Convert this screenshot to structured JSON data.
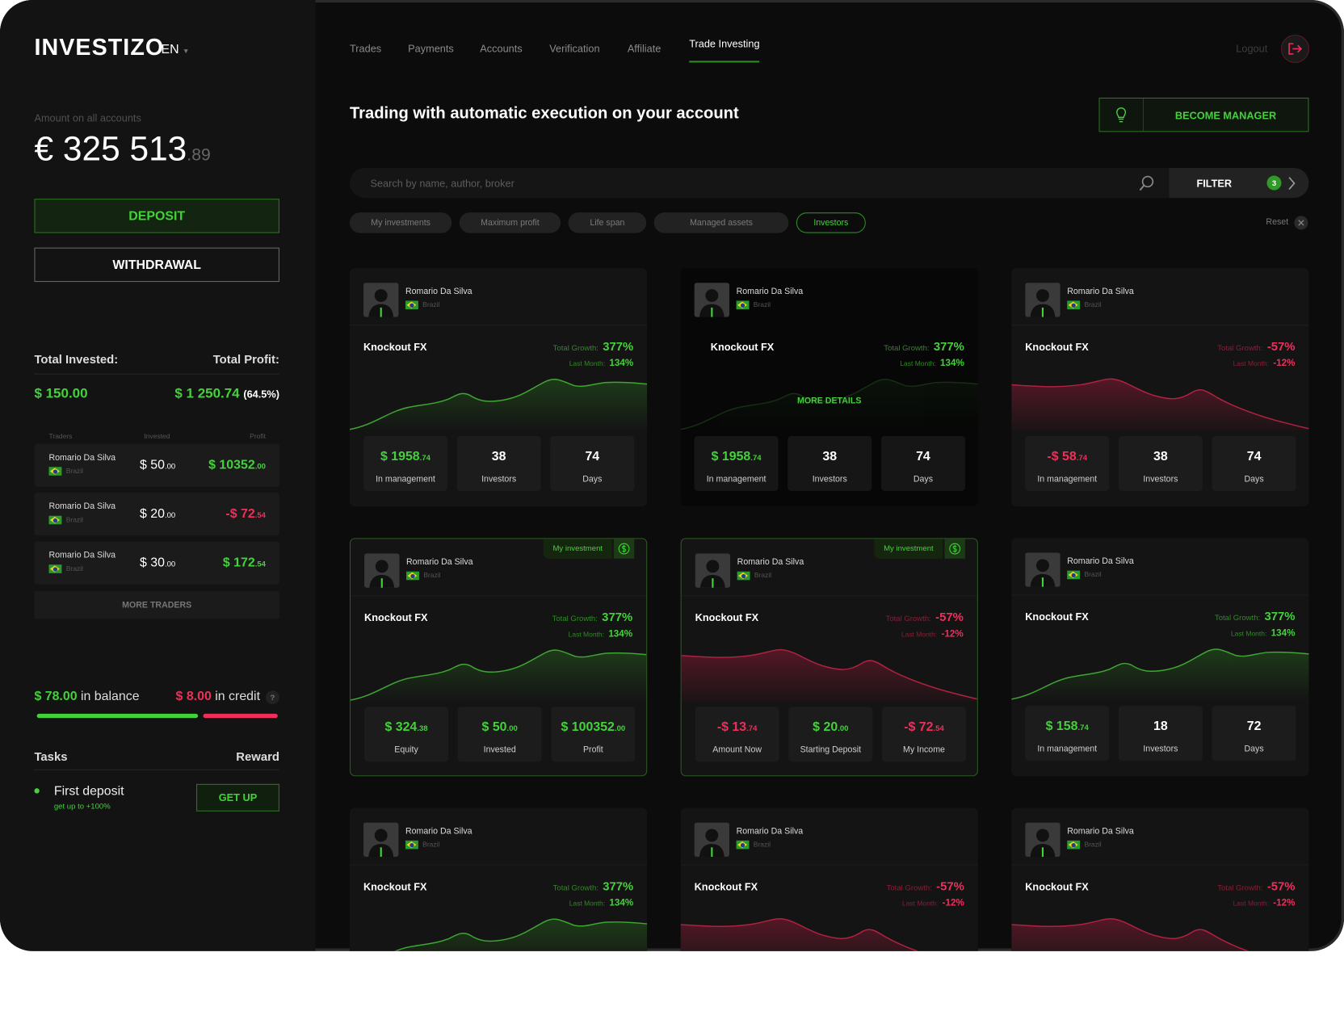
{
  "header": {
    "logo": "INVESTIZO",
    "language": "EN",
    "nav": [
      "Trades",
      "Payments",
      "Accounts",
      "Verification",
      "Affiliate",
      "Trade Investing"
    ],
    "active_nav": 5,
    "logout": "Logout"
  },
  "sidebar": {
    "amount_label": "Amount on all accounts",
    "amount": "€ 325 513",
    "amount_cents": ".89",
    "deposit": "DEPOSIT",
    "withdrawal": "WITHDRAWAL",
    "total_invested_label": "Total Invested:",
    "total_profit_label": "Total Profit:",
    "total_invested": "$ 150.00",
    "total_profit": "$ 1 250.74",
    "profit_pct": "(64.5%)",
    "traders_headers": [
      "Traders",
      "Invested",
      "Profit"
    ],
    "traders": [
      {
        "name": "Romario Da Silva",
        "country": "Brazil",
        "invested": "$ 50",
        "invested_cents": ".00",
        "profit": "$ 10352",
        "profit_cents": ".00",
        "tone": "up"
      },
      {
        "name": "Romario Da Silva",
        "country": "Brazil",
        "invested": "$ 20",
        "invested_cents": ".00",
        "profit": "-$ 72",
        "profit_cents": ".54",
        "tone": "down"
      },
      {
        "name": "Romario Da Silva",
        "country": "Brazil",
        "invested": "$ 30",
        "invested_cents": ".00",
        "profit": "$ 172",
        "profit_cents": ".54",
        "tone": "up"
      }
    ],
    "more_traders": "MORE TRADERS",
    "balance": "$ 78.00",
    "balance_label": "in balance",
    "credit": "$ 8.00",
    "credit_label": "in credit",
    "help": "?",
    "tasks_label": "Tasks",
    "reward_label": "Reward",
    "task": {
      "title": "First deposit",
      "subtitle": "get up to +100%",
      "button": "GET UP"
    }
  },
  "main": {
    "title": "Trading with automatic execution on your account",
    "become_manager": "BECOME MANAGER",
    "search_placeholder": "Search by name, author, broker",
    "filter": "FILTER",
    "filter_count": "3",
    "chips": [
      "My investments",
      "Maximum profit",
      "Life span",
      "Managed assets",
      "Investors"
    ],
    "active_chip": 4,
    "reset": "Reset",
    "growth_label": "Total Growth:",
    "month_label": "Last Month:",
    "more_details": "MORE DETAILS",
    "cards": [
      {
        "name": "Romario Da Silva",
        "country": "Brazil",
        "fund": "Knockout FX",
        "growth": "377%",
        "month": "134%",
        "tone": "up",
        "stats": [
          {
            "value": "$ 1958",
            "cents": ".74",
            "label": "In management",
            "tone": "up"
          },
          {
            "value": "38",
            "label": "Investors"
          },
          {
            "value": "74",
            "label": "Days"
          }
        ]
      },
      {
        "name": "Romario Da Silva",
        "country": "Brazil",
        "fund": "Knockout FX",
        "growth": "377%",
        "month": "134%",
        "tone": "up",
        "highlight": true,
        "stats": [
          {
            "value": "$ 1958",
            "cents": ".74",
            "label": "In management",
            "tone": "up"
          },
          {
            "value": "38",
            "label": "Investors"
          },
          {
            "value": "74",
            "label": "Days"
          }
        ]
      },
      {
        "name": "Romario Da Silva",
        "country": "Brazil",
        "fund": "Knockout FX",
        "growth": "-57%",
        "month": "-12%",
        "tone": "down",
        "stats": [
          {
            "value": "-$ 58",
            "cents": ".74",
            "label": "In management",
            "tone": "down"
          },
          {
            "value": "38",
            "label": "Investors"
          },
          {
            "value": "74",
            "label": "Days"
          }
        ]
      },
      {
        "name": "Romario Da Silva",
        "country": "Brazil",
        "fund": "Knockout FX",
        "growth": "377%",
        "month": "134%",
        "tone": "up",
        "badge": "My investment",
        "stats": [
          {
            "value": "$ 324",
            "cents": ".38",
            "label": "Equity",
            "tone": "up"
          },
          {
            "value": "$ 50",
            "cents": ".00",
            "label": "Invested",
            "tone": "up"
          },
          {
            "value": "$ 100352",
            "cents": ".00",
            "label": "Profit",
            "tone": "up"
          }
        ]
      },
      {
        "name": "Romario Da Silva",
        "country": "Brazil",
        "fund": "Knockout FX",
        "growth": "-57%",
        "month": "-12%",
        "tone": "down",
        "badge": "My investment",
        "stats": [
          {
            "value": "-$ 13",
            "cents": ".74",
            "label": "Amount Now",
            "tone": "down"
          },
          {
            "value": "$ 20",
            "cents": ".00",
            "label": "Starting Deposit",
            "tone": "up"
          },
          {
            "value": "-$ 72",
            "cents": ".54",
            "label": "My Income",
            "tone": "down"
          }
        ]
      },
      {
        "name": "Romario Da Silva",
        "country": "Brazil",
        "fund": "Knockout FX",
        "growth": "377%",
        "month": "134%",
        "tone": "up",
        "stats": [
          {
            "value": "$ 158",
            "cents": ".74",
            "label": "In management",
            "tone": "up"
          },
          {
            "value": "18",
            "label": "Investors"
          },
          {
            "value": "72",
            "label": "Days"
          }
        ]
      },
      {
        "name": "Romario Da Silva",
        "country": "Brazil",
        "fund": "Knockout FX",
        "growth": "377%",
        "month": "134%",
        "tone": "up"
      },
      {
        "name": "Romario Da Silva",
        "country": "Brazil",
        "fund": "Knockout FX",
        "growth": "-57%",
        "month": "-12%",
        "tone": "down"
      },
      {
        "name": "Romario Da Silva",
        "country": "Brazil",
        "fund": "Knockout FX",
        "growth": "-57%",
        "month": "-12%",
        "tone": "down"
      }
    ]
  }
}
